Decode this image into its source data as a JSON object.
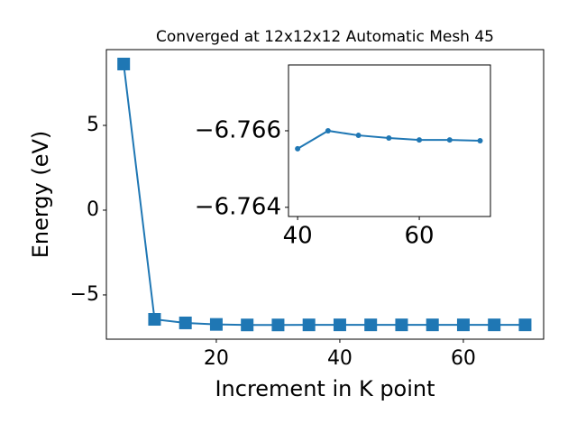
{
  "chart_data": [
    {
      "type": "line",
      "title": "Converged at 12x12x12 Automatic Mesh 45",
      "xlabel": "Increment in K point",
      "ylabel": "Energy (eV)",
      "x": [
        5,
        10,
        15,
        20,
        25,
        30,
        35,
        40,
        45,
        50,
        55,
        60,
        65,
        70
      ],
      "series": [
        {
          "color": "#1f77b4",
          "marker": "square",
          "values": [
            8.62,
            -6.44,
            -6.65,
            -6.74,
            -6.77,
            -6.77,
            -6.767,
            -6.7655,
            -6.766,
            -6.7659,
            -6.7658,
            -6.7658,
            -6.7658,
            -6.7657
          ]
        }
      ],
      "xlim": [
        2.2,
        73.0
      ],
      "ylim": [
        -7.61,
        9.47
      ],
      "xticks": [
        20,
        40,
        60
      ],
      "yticks": [
        {
          "value": -5,
          "label": "−5"
        },
        0,
        5
      ]
    },
    {
      "type": "line",
      "x": [
        40,
        45,
        50,
        55,
        60,
        65,
        70
      ],
      "series": [
        {
          "color": "#1f77b4",
          "marker": "circle",
          "values": [
            -6.76553,
            -6.766,
            -6.76588,
            -6.76581,
            -6.76576,
            -6.76576,
            -6.76574
          ]
        }
      ],
      "xlim": [
        38.5,
        71.7
      ],
      "ylim": [
        -6.76376,
        -6.76772
      ],
      "xticks": [
        40,
        60
      ],
      "yticks": [
        {
          "value": -6.766,
          "label": "−6.766"
        },
        {
          "value": -6.764,
          "label": "−6.764"
        }
      ]
    }
  ]
}
